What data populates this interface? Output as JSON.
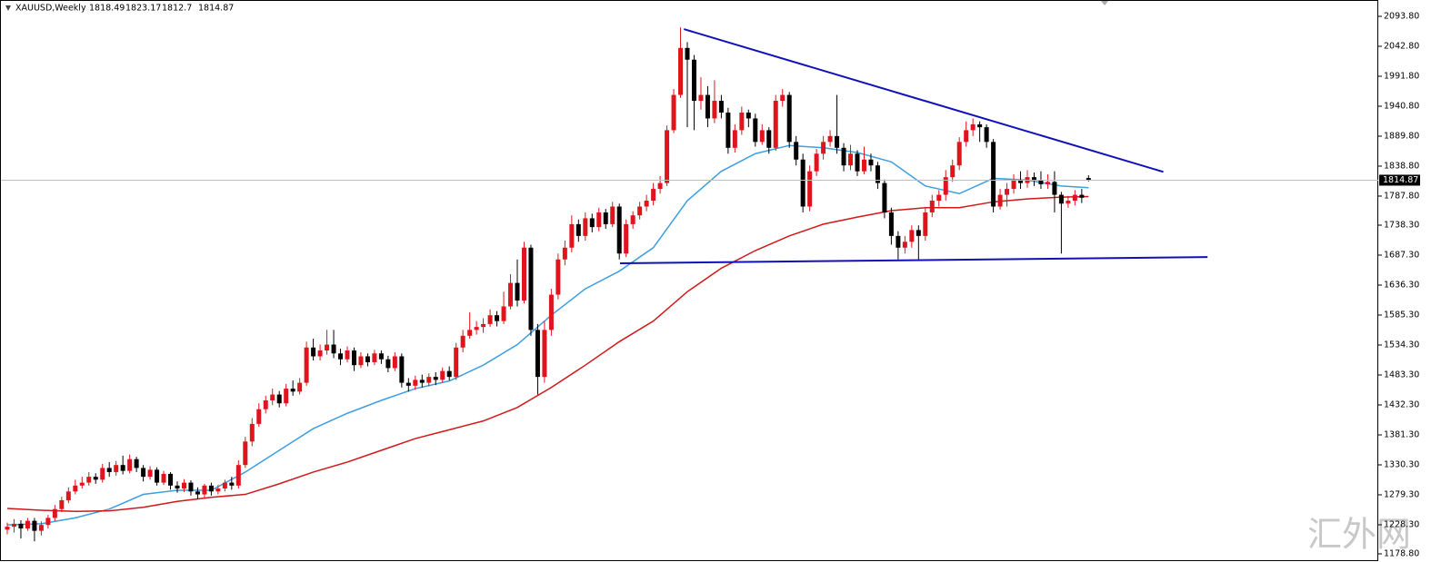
{
  "chart_data": {
    "type": "candlestick",
    "symbol": "XAUUSD,Weekly",
    "watermark": "汇外网",
    "up_color": "#e0141c",
    "down_color": "#000000",
    "ylim": [
      1168,
      2121.6
    ],
    "yticks": [
      {
        "value": 2093.8,
        "label": "2093.80"
      },
      {
        "value": 2042.8,
        "label": "2042.80"
      },
      {
        "value": 1991.8,
        "label": "1991.80"
      },
      {
        "value": 1940.8,
        "label": "1940.80"
      },
      {
        "value": 1889.8,
        "label": "1889.80"
      },
      {
        "value": 1838.8,
        "label": "1838.80"
      },
      {
        "value": 1787.8,
        "label": "1787.80"
      },
      {
        "value": 1738.3,
        "label": "1738.30"
      },
      {
        "value": 1687.3,
        "label": "1687.30"
      },
      {
        "value": 1636.3,
        "label": "1636.30"
      },
      {
        "value": 1585.3,
        "label": "1585.30"
      },
      {
        "value": 1534.3,
        "label": "1534.30"
      },
      {
        "value": 1483.3,
        "label": "1483.30"
      },
      {
        "value": 1432.3,
        "label": "1432.30"
      },
      {
        "value": 1381.3,
        "label": "1381.30"
      },
      {
        "value": 1330.3,
        "label": "1330.30"
      },
      {
        "value": 1279.3,
        "label": "1279.30"
      },
      {
        "value": 1228.3,
        "label": "1228.30"
      },
      {
        "value": 1178.8,
        "label": "1178.80"
      }
    ],
    "ohlc": [
      [
        1220,
        1232,
        1212,
        1225
      ],
      [
        1225,
        1238,
        1215,
        1230
      ],
      [
        1230,
        1236,
        1205,
        1222
      ],
      [
        1222,
        1240,
        1218,
        1235
      ],
      [
        1235,
        1240,
        1200,
        1218
      ],
      [
        1218,
        1234,
        1210,
        1228
      ],
      [
        1228,
        1245,
        1222,
        1240
      ],
      [
        1240,
        1262,
        1235,
        1255
      ],
      [
        1255,
        1276,
        1250,
        1270
      ],
      [
        1270,
        1292,
        1265,
        1285
      ],
      [
        1285,
        1305,
        1280,
        1295
      ],
      [
        1295,
        1310,
        1290,
        1300
      ],
      [
        1300,
        1318,
        1295,
        1310
      ],
      [
        1310,
        1316,
        1298,
        1305
      ],
      [
        1305,
        1332,
        1300,
        1325
      ],
      [
        1325,
        1335,
        1310,
        1318
      ],
      [
        1318,
        1337,
        1312,
        1330
      ],
      [
        1330,
        1346,
        1314,
        1320
      ],
      [
        1320,
        1348,
        1316,
        1340
      ],
      [
        1340,
        1344,
        1318,
        1325
      ],
      [
        1325,
        1330,
        1302,
        1310
      ],
      [
        1310,
        1328,
        1305,
        1322
      ],
      [
        1322,
        1326,
        1295,
        1300
      ],
      [
        1300,
        1320,
        1296,
        1315
      ],
      [
        1315,
        1318,
        1288,
        1295
      ],
      [
        1295,
        1302,
        1283,
        1290
      ],
      [
        1290,
        1306,
        1284,
        1300
      ],
      [
        1300,
        1304,
        1278,
        1285
      ],
      [
        1285,
        1292,
        1272,
        1280
      ],
      [
        1280,
        1298,
        1274,
        1295
      ],
      [
        1295,
        1300,
        1278,
        1285
      ],
      [
        1285,
        1296,
        1280,
        1290
      ],
      [
        1290,
        1305,
        1285,
        1300
      ],
      [
        1300,
        1310,
        1288,
        1295
      ],
      [
        1295,
        1338,
        1290,
        1330
      ],
      [
        1330,
        1378,
        1325,
        1370
      ],
      [
        1370,
        1410,
        1362,
        1400
      ],
      [
        1400,
        1435,
        1395,
        1425
      ],
      [
        1425,
        1448,
        1418,
        1440
      ],
      [
        1440,
        1460,
        1432,
        1450
      ],
      [
        1450,
        1456,
        1428,
        1435
      ],
      [
        1435,
        1468,
        1430,
        1460
      ],
      [
        1460,
        1474,
        1448,
        1455
      ],
      [
        1455,
        1478,
        1450,
        1470
      ],
      [
        1470,
        1540,
        1465,
        1530
      ],
      [
        1530,
        1545,
        1508,
        1515
      ],
      [
        1515,
        1535,
        1508,
        1525
      ],
      [
        1525,
        1560,
        1518,
        1535
      ],
      [
        1535,
        1560,
        1512,
        1520
      ],
      [
        1520,
        1528,
        1500,
        1510
      ],
      [
        1510,
        1532,
        1505,
        1525
      ],
      [
        1525,
        1530,
        1490,
        1500
      ],
      [
        1500,
        1522,
        1495,
        1515
      ],
      [
        1515,
        1520,
        1498,
        1505
      ],
      [
        1505,
        1526,
        1500,
        1520
      ],
      [
        1520,
        1525,
        1502,
        1510
      ],
      [
        1510,
        1516,
        1488,
        1495
      ],
      [
        1495,
        1522,
        1490,
        1515
      ],
      [
        1515,
        1520,
        1462,
        1470
      ],
      [
        1470,
        1478,
        1455,
        1465
      ],
      [
        1465,
        1482,
        1458,
        1475
      ],
      [
        1475,
        1484,
        1462,
        1470
      ],
      [
        1470,
        1486,
        1464,
        1480
      ],
      [
        1480,
        1488,
        1466,
        1475
      ],
      [
        1475,
        1496,
        1470,
        1490
      ],
      [
        1490,
        1498,
        1474,
        1480
      ],
      [
        1480,
        1538,
        1475,
        1530
      ],
      [
        1530,
        1560,
        1522,
        1550
      ],
      [
        1550,
        1590,
        1545,
        1560
      ],
      [
        1560,
        1575,
        1552,
        1565
      ],
      [
        1565,
        1580,
        1555,
        1570
      ],
      [
        1570,
        1595,
        1565,
        1585
      ],
      [
        1585,
        1592,
        1566,
        1575
      ],
      [
        1575,
        1625,
        1570,
        1600
      ],
      [
        1600,
        1655,
        1595,
        1640
      ],
      [
        1640,
        1680,
        1600,
        1610
      ],
      [
        1610,
        1710,
        1605,
        1700
      ],
      [
        1700,
        1705,
        1550,
        1560
      ],
      [
        1560,
        1570,
        1450,
        1480
      ],
      [
        1480,
        1575,
        1470,
        1560
      ],
      [
        1560,
        1630,
        1550,
        1620
      ],
      [
        1620,
        1690,
        1612,
        1680
      ],
      [
        1680,
        1712,
        1670,
        1700
      ],
      [
        1700,
        1755,
        1692,
        1740
      ],
      [
        1740,
        1748,
        1710,
        1720
      ],
      [
        1720,
        1760,
        1712,
        1750
      ],
      [
        1750,
        1758,
        1726,
        1735
      ],
      [
        1735,
        1768,
        1728,
        1760
      ],
      [
        1760,
        1766,
        1732,
        1740
      ],
      [
        1740,
        1778,
        1735,
        1770
      ],
      [
        1770,
        1775,
        1680,
        1690
      ],
      [
        1690,
        1748,
        1684,
        1740
      ],
      [
        1740,
        1762,
        1732,
        1755
      ],
      [
        1755,
        1778,
        1748,
        1770
      ],
      [
        1770,
        1790,
        1762,
        1780
      ],
      [
        1780,
        1810,
        1772,
        1800
      ],
      [
        1800,
        1822,
        1792,
        1810
      ],
      [
        1810,
        1908,
        1805,
        1900
      ],
      [
        1900,
        1970,
        1895,
        1960
      ],
      [
        1960,
        2075,
        1955,
        2040
      ],
      [
        2040,
        2050,
        1905,
        2020
      ],
      [
        2020,
        2028,
        1900,
        1950
      ],
      [
        1950,
        1990,
        1935,
        1960
      ],
      [
        1960,
        1975,
        1905,
        1920
      ],
      [
        1920,
        1985,
        1912,
        1950
      ],
      [
        1950,
        1960,
        1920,
        1930
      ],
      [
        1930,
        1938,
        1860,
        1870
      ],
      [
        1870,
        1910,
        1862,
        1900
      ],
      [
        1900,
        1940,
        1892,
        1930
      ],
      [
        1930,
        1935,
        1905,
        1920
      ],
      [
        1920,
        1928,
        1872,
        1880
      ],
      [
        1880,
        1910,
        1875,
        1900
      ],
      [
        1900,
        1905,
        1860,
        1870
      ],
      [
        1870,
        1960,
        1865,
        1950
      ],
      [
        1950,
        1970,
        1940,
        1960
      ],
      [
        1960,
        1965,
        1870,
        1880
      ],
      [
        1880,
        1890,
        1840,
        1850
      ],
      [
        1850,
        1860,
        1760,
        1770
      ],
      [
        1770,
        1840,
        1762,
        1830
      ],
      [
        1830,
        1868,
        1822,
        1860
      ],
      [
        1860,
        1890,
        1850,
        1880
      ],
      [
        1880,
        1900,
        1872,
        1890
      ],
      [
        1890,
        1960,
        1860,
        1870
      ],
      [
        1870,
        1878,
        1830,
        1840
      ],
      [
        1840,
        1875,
        1832,
        1860
      ],
      [
        1860,
        1866,
        1822,
        1830
      ],
      [
        1830,
        1872,
        1825,
        1850
      ],
      [
        1850,
        1860,
        1830,
        1840
      ],
      [
        1840,
        1846,
        1800,
        1810
      ],
      [
        1810,
        1816,
        1750,
        1760
      ],
      [
        1760,
        1768,
        1705,
        1720
      ],
      [
        1720,
        1728,
        1680,
        1700
      ],
      [
        1700,
        1720,
        1690,
        1710
      ],
      [
        1710,
        1738,
        1700,
        1730
      ],
      [
        1730,
        1738,
        1680,
        1720
      ],
      [
        1720,
        1768,
        1712,
        1760
      ],
      [
        1760,
        1790,
        1752,
        1780
      ],
      [
        1780,
        1798,
        1770,
        1790
      ],
      [
        1790,
        1832,
        1780,
        1820
      ],
      [
        1820,
        1850,
        1812,
        1840
      ],
      [
        1840,
        1888,
        1832,
        1880
      ],
      [
        1880,
        1915,
        1872,
        1900
      ],
      [
        1900,
        1920,
        1890,
        1910
      ],
      [
        1910,
        1915,
        1880,
        1905
      ],
      [
        1905,
        1910,
        1870,
        1880
      ],
      [
        1880,
        1885,
        1760,
        1770
      ],
      [
        1770,
        1800,
        1765,
        1790
      ],
      [
        1790,
        1810,
        1770,
        1800
      ],
      [
        1800,
        1825,
        1792,
        1815
      ],
      [
        1815,
        1830,
        1800,
        1810
      ],
      [
        1810,
        1832,
        1802,
        1820
      ],
      [
        1820,
        1828,
        1805,
        1815
      ],
      [
        1815,
        1830,
        1800,
        1808
      ],
      [
        1808,
        1825,
        1800,
        1812
      ],
      [
        1812,
        1830,
        1760,
        1790
      ],
      [
        1790,
        1795,
        1690,
        1775
      ],
      [
        1775,
        1788,
        1768,
        1780
      ],
      [
        1780,
        1798,
        1772,
        1790
      ],
      [
        1790,
        1800,
        1776,
        1785
      ],
      [
        1818.49,
        1823.17,
        1812.7,
        1814.87
      ]
    ],
    "moving_averages": {
      "x": [
        0,
        5,
        10,
        15,
        20,
        25,
        30,
        35,
        40,
        45,
        50,
        55,
        60,
        65,
        70,
        75,
        80,
        85,
        90,
        95,
        100,
        105,
        110,
        115,
        120,
        125,
        130,
        135,
        140,
        145,
        150,
        155,
        159
      ],
      "series": [
        {
          "color": "#3d9ee0",
          "values": [
            1228,
            1230,
            1240,
            1255,
            1280,
            1287,
            1287,
            1318,
            1355,
            1392,
            1418,
            1440,
            1460,
            1473,
            1500,
            1535,
            1585,
            1630,
            1660,
            1700,
            1780,
            1830,
            1860,
            1874,
            1870,
            1862,
            1846,
            1805,
            1792,
            1818,
            1815,
            1805,
            1802
          ]
        },
        {
          "color": "#d01818",
          "values": [
            1256,
            1253,
            1251,
            1252,
            1258,
            1268,
            1275,
            1280,
            1298,
            1318,
            1335,
            1355,
            1375,
            1390,
            1405,
            1428,
            1462,
            1500,
            1540,
            1575,
            1625,
            1665,
            1695,
            1720,
            1740,
            1752,
            1763,
            1768,
            1768,
            1778,
            1783,
            1786,
            1787
          ]
        }
      ]
    },
    "trendlines": [
      {
        "color": "#1010b8",
        "x": [
          99.5,
          170
        ],
        "values": [
          2072,
          1829
        ]
      },
      {
        "color": "#1010b8",
        "x": [
          90.1,
          176.5
        ],
        "values": [
          1673.4,
          1684
        ]
      }
    ]
  }
}
